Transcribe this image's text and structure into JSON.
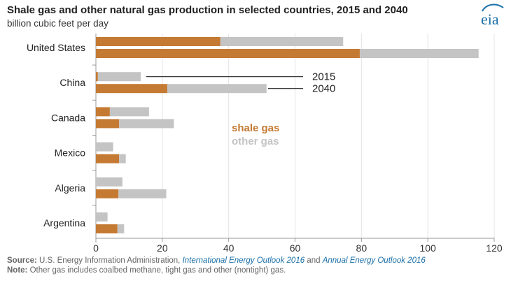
{
  "header": {
    "title": "Shale gas and other natural gas production in selected countries, 2015 and 2040",
    "subtitle": "billion cubic feet per day",
    "logo_text": "eia"
  },
  "colors": {
    "shale": "#c57a33",
    "other": "#c4c4c4",
    "logo": "#1a6fa8",
    "axis": "#999999"
  },
  "chart_data": {
    "type": "bar",
    "orientation": "horizontal",
    "stacked": true,
    "title": "Shale gas and other natural gas production in selected countries, 2015 and 2040",
    "subtitle": "billion cubic feet per day",
    "categories": [
      "United States",
      "China",
      "Canada",
      "Mexico",
      "Algeria",
      "Argentina"
    ],
    "years": [
      "2015",
      "2040"
    ],
    "series": [
      {
        "name": "shale gas",
        "values_2015": [
          37.5,
          0.6,
          4.2,
          0.0,
          0.0,
          0.0
        ],
        "values_2040": [
          79.5,
          21.5,
          7.0,
          7.0,
          6.8,
          6.5
        ]
      },
      {
        "name": "other gas",
        "values_2015": [
          37.0,
          12.9,
          11.8,
          5.2,
          8.0,
          3.5
        ],
        "values_2040": [
          35.8,
          29.9,
          16.5,
          2.0,
          14.4,
          2.0
        ]
      }
    ],
    "xlim": [
      0,
      120
    ],
    "xticks": [
      0,
      20,
      40,
      60,
      80,
      100,
      120
    ],
    "grid": "vertical",
    "legend": {
      "shale_label": "shale gas",
      "other_label": "other gas",
      "placement": "right-center"
    },
    "annotations": {
      "year_2015": "2015",
      "year_2040": "2040"
    }
  },
  "footer": {
    "source_label": "Source:",
    "source_text_1": "U.S. Energy Information Administration,",
    "source_link_1": "International Energy Outlook 2016",
    "source_and": "and",
    "source_link_2": "Annual Energy Outlook 2016",
    "note_label": "Note:",
    "note_text": "Other gas includes coalbed methane, tight gas and other (nontight) gas."
  }
}
